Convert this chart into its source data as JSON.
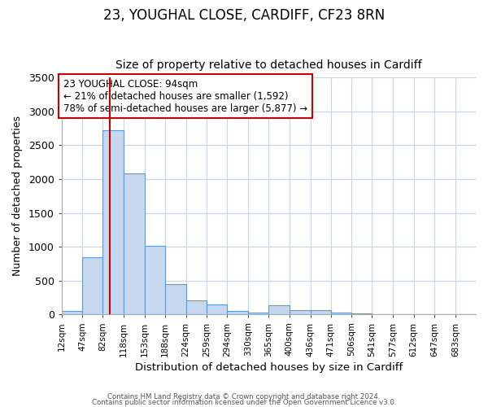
{
  "title": "23, YOUGHAL CLOSE, CARDIFF, CF23 8RN",
  "subtitle": "Size of property relative to detached houses in Cardiff",
  "xlabel": "Distribution of detached houses by size in Cardiff",
  "ylabel": "Number of detached properties",
  "bin_edges": [
    12,
    47,
    82,
    118,
    153,
    188,
    224,
    259,
    294,
    330,
    365,
    400,
    436,
    471,
    506,
    541,
    577,
    612,
    647,
    683,
    718
  ],
  "bar_heights": [
    55,
    850,
    2720,
    2080,
    1010,
    455,
    210,
    145,
    55,
    25,
    140,
    60,
    65,
    25,
    20,
    10,
    5,
    0,
    5,
    0
  ],
  "bar_color": "#c5d8f0",
  "bar_edge_color": "#5b9bd5",
  "vline_x": 94,
  "vline_color": "#cc0000",
  "ylim": [
    0,
    3500
  ],
  "annotation_text": "23 YOUGHAL CLOSE: 94sqm\n← 21% of detached houses are smaller (1,592)\n78% of semi-detached houses are larger (5,877) →",
  "annotation_box_color": "white",
  "annotation_box_edge_color": "#cc0000",
  "annotation_fontsize": 8.5,
  "title_fontsize": 12,
  "subtitle_fontsize": 10,
  "xlabel_fontsize": 9.5,
  "ylabel_fontsize": 9,
  "tick_fontsize": 7.5,
  "footer_line1": "Contains HM Land Registry data © Crown copyright and database right 2024.",
  "footer_line2": "Contains public sector information licensed under the Open Government Licence v3.0.",
  "background_color": "#ffffff",
  "grid_color": "#c8d4e8"
}
